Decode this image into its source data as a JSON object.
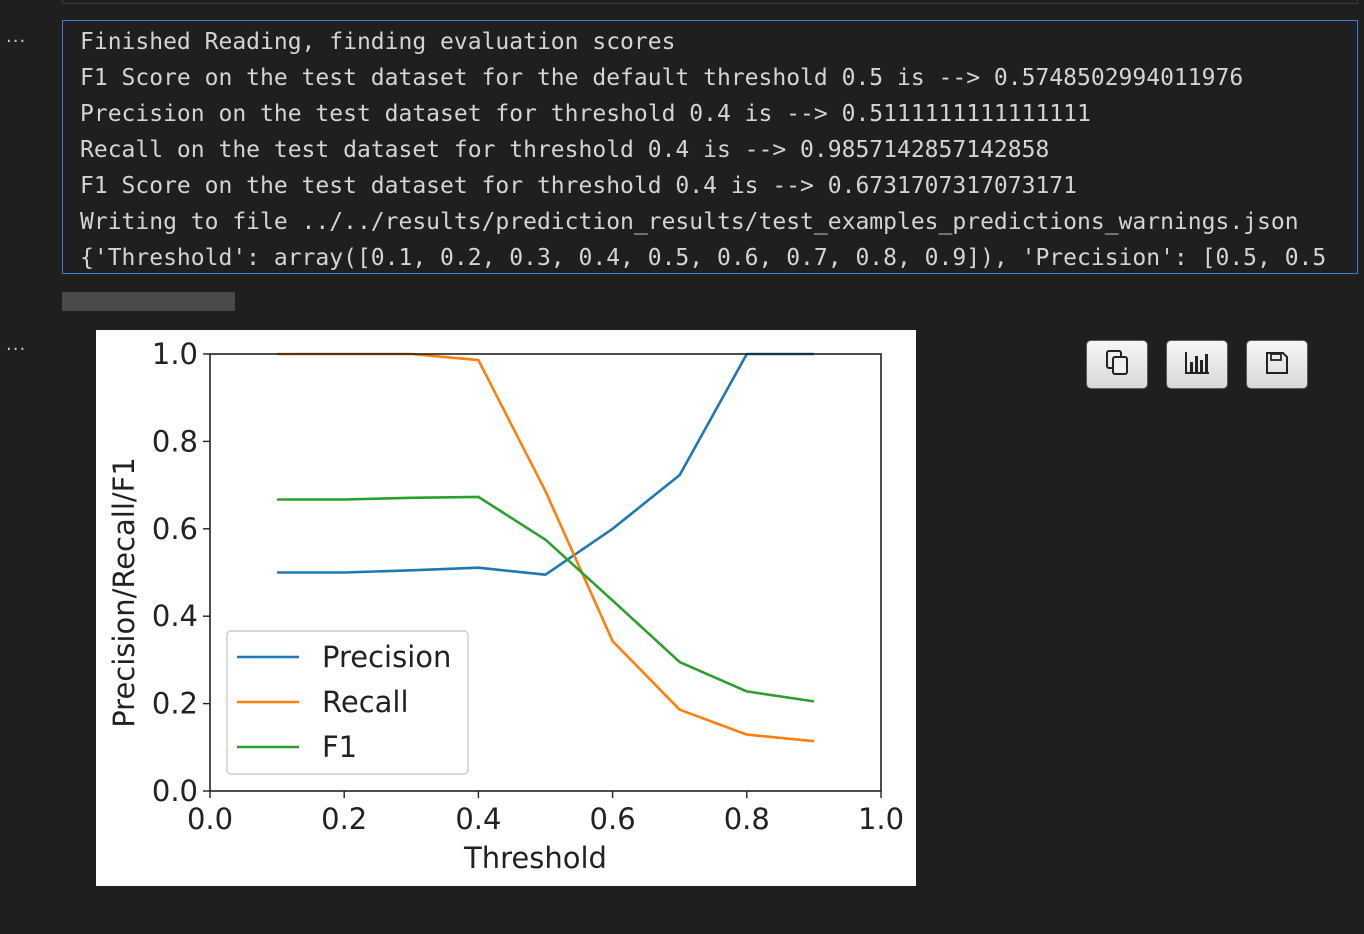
{
  "cells": {
    "output1_prompt": "...",
    "output2_prompt": "..."
  },
  "output_lines": [
    "Finished Reading, finding evaluation scores",
    "F1 Score on the test dataset for the default threshold 0.5 is --> 0.5748502994011976",
    "Precision on the test dataset for threshold 0.4 is --> 0.5111111111111111",
    "Recall on the test dataset for threshold 0.4 is --> 0.9857142857142858",
    "F1 Score on the test dataset for threshold 0.4 is --> 0.6731707317073171",
    "Writing to file ../../results/prediction_results/test_examples_predictions_warnings.json",
    "{'Threshold': array([0.1, 0.2, 0.3, 0.4, 0.5, 0.6, 0.7, 0.8, 0.9]), 'Precision': [0.5, 0.5"
  ],
  "toolbar": {
    "copy_icon": "copy-icon",
    "chart_icon": "bar-chart-icon",
    "save_icon": "floppy-save-icon"
  },
  "colors": {
    "output_border": "#3c7fce",
    "background": "#1f1f1f",
    "text": "#d4d4d4"
  },
  "chart_data": {
    "type": "line",
    "title": "",
    "xlabel": "Threshold",
    "ylabel": "Precision/Recall/F1",
    "xlim": [
      0.0,
      1.0
    ],
    "ylim": [
      0.0,
      1.0
    ],
    "xticks": [
      "0.0",
      "0.2",
      "0.4",
      "0.6",
      "0.8",
      "1.0"
    ],
    "yticks": [
      "0.0",
      "0.2",
      "0.4",
      "0.6",
      "0.8",
      "1.0"
    ],
    "grid": false,
    "legend_position": "lower-left",
    "x": [
      0.1,
      0.2,
      0.3,
      0.4,
      0.5,
      0.6,
      0.7,
      0.8,
      0.9
    ],
    "series": [
      {
        "name": "Precision",
        "color": "#1f77b4",
        "values": [
          0.5,
          0.5,
          0.505,
          0.511,
          0.495,
          0.6,
          0.723,
          1.0,
          1.0
        ]
      },
      {
        "name": "Recall",
        "color": "#ff7f0e",
        "values": [
          1.0,
          1.0,
          1.0,
          0.986,
          0.686,
          0.343,
          0.186,
          0.129,
          0.114
        ]
      },
      {
        "name": "F1",
        "color": "#2ca02c",
        "values": [
          0.667,
          0.667,
          0.671,
          0.673,
          0.575,
          0.436,
          0.295,
          0.228,
          0.205
        ]
      }
    ]
  }
}
